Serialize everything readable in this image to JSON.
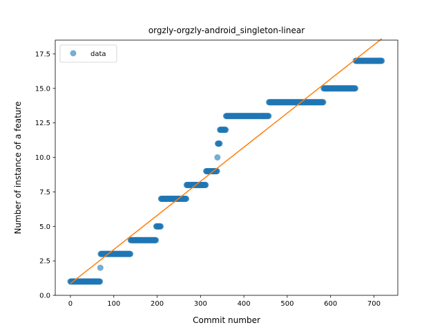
{
  "chart_data": {
    "type": "scatter",
    "title": "orgzly-orgzly-android_singleton-linear",
    "xlabel": "Commit number",
    "ylabel": "Number of instance of a feature",
    "xlim": [
      -35,
      755
    ],
    "ylim": [
      0,
      18.5
    ],
    "x_ticks": [
      0,
      100,
      200,
      300,
      400,
      500,
      600,
      700
    ],
    "y_ticks": [
      0.0,
      2.5,
      5.0,
      7.5,
      10.0,
      12.5,
      15.0,
      17.5
    ],
    "y_tick_labels": [
      "0.0",
      "2.5",
      "5.0",
      "7.5",
      "10.0",
      "12.5",
      "15.0",
      "17.5"
    ],
    "legend": {
      "position": "top-left",
      "entries": [
        "data"
      ]
    },
    "series": [
      {
        "name": "data",
        "kind": "points",
        "color": "#1f77b4",
        "segments": [
          {
            "y": 1,
            "x_start": 0,
            "x_end": 68
          },
          {
            "y": 2,
            "x_start": 69,
            "x_end": 69
          },
          {
            "y": 3,
            "x_start": 70,
            "x_end": 138
          },
          {
            "y": 4,
            "x_start": 139,
            "x_end": 197
          },
          {
            "y": 5,
            "x_start": 198,
            "x_end": 208
          },
          {
            "y": 7,
            "x_start": 209,
            "x_end": 267
          },
          {
            "y": 8,
            "x_start": 268,
            "x_end": 312
          },
          {
            "y": 9,
            "x_start": 313,
            "x_end": 338
          },
          {
            "y": 10,
            "x_start": 339,
            "x_end": 339
          },
          {
            "y": 11,
            "x_start": 340,
            "x_end": 344
          },
          {
            "y": 12,
            "x_start": 345,
            "x_end": 358
          },
          {
            "y": 13,
            "x_start": 359,
            "x_end": 457
          },
          {
            "y": 14,
            "x_start": 458,
            "x_end": 583
          },
          {
            "y": 15,
            "x_start": 584,
            "x_end": 657
          },
          {
            "y": 17,
            "x_start": 658,
            "x_end": 718
          }
        ]
      },
      {
        "kind": "line",
        "color": "#ff7f0e",
        "x": [
          0,
          718
        ],
        "y": [
          0.85,
          18.6
        ]
      }
    ]
  }
}
